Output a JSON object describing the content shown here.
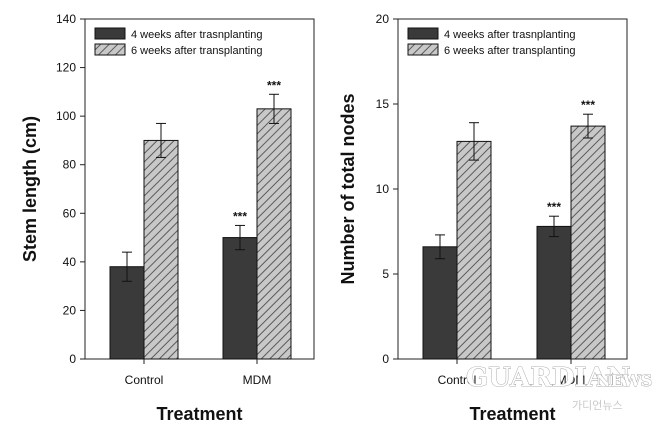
{
  "chart_data": [
    {
      "type": "bar",
      "categories": [
        "Control",
        "MDM"
      ],
      "xlabel": "Treatment",
      "ylabel": "Stem length (cm)",
      "ylim": [
        0,
        140
      ],
      "yticks": [
        "0",
        "20",
        "40",
        "60",
        "80",
        "100",
        "120",
        "140"
      ],
      "legend": "top-left, inside",
      "grid": false,
      "series": [
        {
          "name": "4 weeks after trasnplanting",
          "fill": "#3a3a3a",
          "values": [
            38,
            50
          ],
          "errors": [
            6,
            5
          ],
          "annotations": [
            "",
            "***"
          ]
        },
        {
          "name": "6 weeks after transplanting",
          "fill": "hatched #c8c8c8",
          "values": [
            90,
            103
          ],
          "errors": [
            7,
            6
          ],
          "annotations": [
            "",
            "***"
          ]
        }
      ]
    },
    {
      "type": "bar",
      "categories": [
        "Control",
        "MDM"
      ],
      "xlabel": "Treatment",
      "ylabel": "Number of total nodes",
      "ylim": [
        0,
        20
      ],
      "yticks": [
        "0",
        "5",
        "10",
        "15",
        "20"
      ],
      "legend": "top-left, inside",
      "grid": false,
      "series": [
        {
          "name": "4 weeks after trasnplanting",
          "fill": "#3a3a3a",
          "values": [
            6.6,
            7.8
          ],
          "errors": [
            0.7,
            0.6
          ],
          "annotations": [
            "",
            "***"
          ]
        },
        {
          "name": "6 weeks after transplanting",
          "fill": "hatched #c8c8c8",
          "values": [
            12.8,
            13.7
          ],
          "errors": [
            1.1,
            0.7
          ],
          "annotations": [
            "",
            "***"
          ]
        }
      ]
    }
  ],
  "watermark": {
    "main": "GUARDIAN",
    "suffix": "NEWS",
    "sub": "가디언뉴스"
  },
  "colors": {
    "dark_bar": "#3a3a3a",
    "hatch_bar_bg": "#c8c8c8",
    "hatch_line": "#5a5a5a",
    "axis": "#222222"
  }
}
